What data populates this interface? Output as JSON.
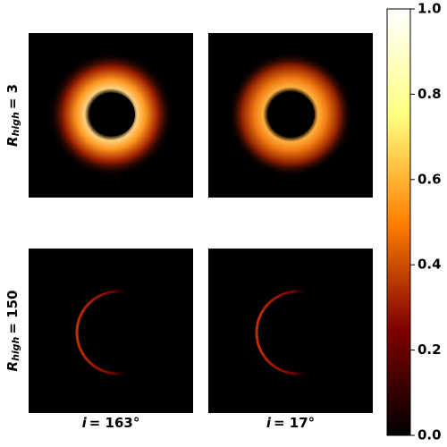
{
  "chart_data": {
    "type": "image",
    "rows": [
      {
        "symbol": "R",
        "subscript": "high",
        "relation": "= 3"
      },
      {
        "symbol": "R",
        "subscript": "high",
        "relation": "= 150"
      }
    ],
    "columns": [
      {
        "symbol": "i",
        "relation": "= 163°"
      },
      {
        "symbol": "i",
        "relation": "= 17°"
      }
    ],
    "colormap": [
      "#000000",
      "#800000",
      "#ff8000",
      "#ffff80",
      "#ffffff"
    ],
    "clim": [
      0,
      1
    ],
    "cticks": [
      {
        "value": 0,
        "label": "0.0"
      },
      {
        "value": 0.2,
        "label": "0.2"
      },
      {
        "value": 0.4,
        "label": "0.4"
      },
      {
        "value": 0.6,
        "label": "0.6"
      },
      {
        "value": 0.8,
        "label": "0.8"
      },
      {
        "value": 1,
        "label": "1.0"
      }
    ]
  }
}
